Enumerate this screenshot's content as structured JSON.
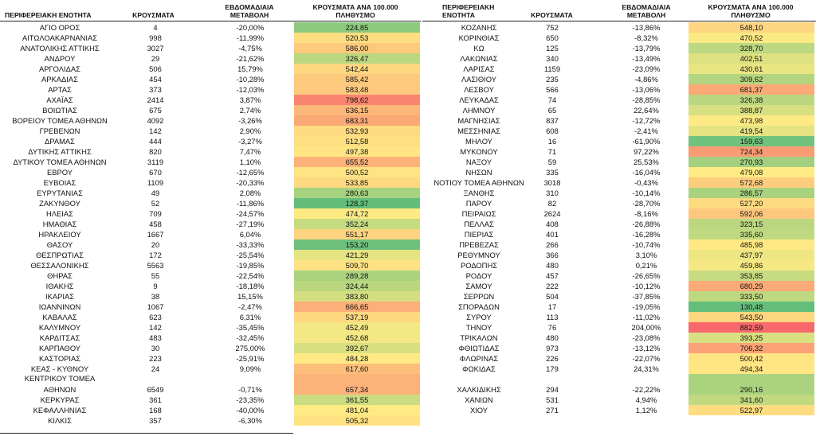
{
  "headers": {
    "region": "ΠΕΡΙΦΕΡΕΙΑΚΗ ΕΝΟΤΗΤΑ",
    "region_line1": "ΠΕΡΙΦΕΡΕΙΑΚΗ",
    "region_line2": "ΕΝΟΤΗΤΑ",
    "cases": "ΚΡΟΥΣΜΑΤΑ",
    "weekly_line1": "ΕΒΔΟΜΑΔΙΑΙΑ",
    "weekly_line2": "ΜΕΤΑΒΟΛΗ",
    "per100k_line1": "ΚΡΟΥΣΜΑΤΑ ΑΝΑ 100.000",
    "per100k_line2": "ΠΛΗΘΥΣΜΟ"
  },
  "colors": {
    "low": "#63be7b",
    "mid": "#ffeb84",
    "high": "#f8696b"
  },
  "left_rows": [
    {
      "name": "ΑΓΙΟ ΟΡΟΣ",
      "cases": "4",
      "change": "-20,00%",
      "rate": "224,85"
    },
    {
      "name": "ΑΙΤΩΛΟΑΚΑΡΝΑΝΙΑΣ",
      "cases": "998",
      "change": "-11,99%",
      "rate": "520,53"
    },
    {
      "name": "ΑΝΑΤΟΛΙΚΗΣ ΑΤΤΙΚΗΣ",
      "cases": "3027",
      "change": "-4,75%",
      "rate": "586,00"
    },
    {
      "name": "ΑΝΔΡΟΥ",
      "cases": "29",
      "change": "-21,62%",
      "rate": "326,47"
    },
    {
      "name": "ΑΡΓΟΛΙΔΑΣ",
      "cases": "506",
      "change": "15,79%",
      "rate": "542,44"
    },
    {
      "name": "ΑΡΚΑΔΙΑΣ",
      "cases": "454",
      "change": "-10,28%",
      "rate": "585,42"
    },
    {
      "name": "ΑΡΤΑΣ",
      "cases": "373",
      "change": "-12,03%",
      "rate": "583,48"
    },
    {
      "name": "ΑΧΑΪΑΣ",
      "cases": "2414",
      "change": "3,87%",
      "rate": "798,62"
    },
    {
      "name": "ΒΟΙΩΤΙΑΣ",
      "cases": "675",
      "change": "2,74%",
      "rate": "636,15"
    },
    {
      "name": "ΒΟΡΕΙΟΥ ΤΟΜΕΑ ΑΘΗΝΩΝ",
      "cases": "4092",
      "change": "-3,26%",
      "rate": "683,31"
    },
    {
      "name": "ΓΡΕΒΕΝΩΝ",
      "cases": "142",
      "change": "2,90%",
      "rate": "532,93"
    },
    {
      "name": "ΔΡΑΜΑΣ",
      "cases": "444",
      "change": "-3,27%",
      "rate": "512,58"
    },
    {
      "name": "ΔΥΤΙΚΗΣ ΑΤΤΙΚΗΣ",
      "cases": "820",
      "change": "7,47%",
      "rate": "497,38"
    },
    {
      "name": "ΔΥΤΙΚΟΥ ΤΟΜΕΑ ΑΘΗΝΩΝ",
      "cases": "3119",
      "change": "1,10%",
      "rate": "655,52"
    },
    {
      "name": "ΕΒΡΟΥ",
      "cases": "670",
      "change": "-12,65%",
      "rate": "500,52"
    },
    {
      "name": "ΕΥΒΟΙΑΣ",
      "cases": "1109",
      "change": "-20,33%",
      "rate": "533,85"
    },
    {
      "name": "ΕΥΡΥΤΑΝΙΑΣ",
      "cases": "49",
      "change": "2,08%",
      "rate": "280,63"
    },
    {
      "name": "ΖΑΚΥΝΘΟΥ",
      "cases": "52",
      "change": "-11,86%",
      "rate": "128,37"
    },
    {
      "name": "ΗΛΕΙΑΣ",
      "cases": "709",
      "change": "-24,57%",
      "rate": "474,72"
    },
    {
      "name": "ΗΜΑΘΙΑΣ",
      "cases": "458",
      "change": "-27,19%",
      "rate": "352,24"
    },
    {
      "name": "ΗΡΑΚΛΕΙΟΥ",
      "cases": "1667",
      "change": "6,04%",
      "rate": "551,17"
    },
    {
      "name": "ΘΑΣΟΥ",
      "cases": "20",
      "change": "-33,33%",
      "rate": "153,20"
    },
    {
      "name": "ΘΕΣΠΡΩΤΙΑΣ",
      "cases": "172",
      "change": "-25,54%",
      "rate": "421,29"
    },
    {
      "name": "ΘΕΣΣΑΛΟΝΙΚΗΣ",
      "cases": "5563",
      "change": "-19,85%",
      "rate": "509,70"
    },
    {
      "name": "ΘΗΡΑΣ",
      "cases": "55",
      "change": "-22,54%",
      "rate": "289,28"
    },
    {
      "name": "ΙΘΑΚΗΣ",
      "cases": "9",
      "change": "-18,18%",
      "rate": "324,44"
    },
    {
      "name": "ΙΚΑΡΙΑΣ",
      "cases": "38",
      "change": "15,15%",
      "rate": "383,80"
    },
    {
      "name": "ΙΩΑΝΝΙΝΩΝ",
      "cases": "1067",
      "change": "-2,47%",
      "rate": "666,65"
    },
    {
      "name": "ΚΑΒΑΛΑΣ",
      "cases": "623",
      "change": "6,31%",
      "rate": "537,19"
    },
    {
      "name": "ΚΑΛΥΜΝΟΥ",
      "cases": "142",
      "change": "-35,45%",
      "rate": "452,49"
    },
    {
      "name": "ΚΑΡΔΙΤΣΑΣ",
      "cases": "483",
      "change": "-32,45%",
      "rate": "452,68"
    },
    {
      "name": "ΚΑΡΠΑΘΟΥ",
      "cases": "30",
      "change": "275,00%",
      "rate": "392,67"
    },
    {
      "name": "ΚΑΣΤΟΡΙΑΣ",
      "cases": "223",
      "change": "-25,91%",
      "rate": "484,28"
    },
    {
      "name": "ΚΕΑΣ - ΚΥΘΝΟΥ",
      "cases": "24",
      "change": "9,09%",
      "rate": "617,60"
    },
    {
      "name": "ΚΕΝΤΡΙΚΟΥ ΤΟΜΕΑ ΑΘΗΝΩΝ",
      "name_line1": "ΚΕΝΤΡΙΚΟΥ ΤΟΜΕΑ",
      "name_line2": "ΑΘΗΝΩΝ",
      "cases": "6549",
      "change": "-0,71%",
      "rate": "657,34"
    },
    {
      "name": "ΚΕΡΚΥΡΑΣ",
      "cases": "361",
      "change": "-23,35%",
      "rate": "361,55"
    },
    {
      "name": "ΚΕΦΑΛΛΗΝΙΑΣ",
      "cases": "168",
      "change": "-40,00%",
      "rate": "481,04"
    },
    {
      "name": "ΚΙΛΚΙΣ",
      "cases": "357",
      "change": "-6,30%",
      "rate": "505,32"
    }
  ],
  "right_rows": [
    {
      "name": "ΚΟΖΑΝΗΣ",
      "cases": "752",
      "change": "-13,86%",
      "rate": "548,10"
    },
    {
      "name": "ΚΟΡΙΝΘΙΑΣ",
      "cases": "650",
      "change": "-8,32%",
      "rate": "470,52"
    },
    {
      "name": "ΚΩ",
      "cases": "125",
      "change": "-13,79%",
      "rate": "328,70"
    },
    {
      "name": "ΛΑΚΩΝΙΑΣ",
      "cases": "340",
      "change": "-13,49%",
      "rate": "402,51"
    },
    {
      "name": "ΛΑΡΙΣΑΣ",
      "cases": "1159",
      "change": "-23,09%",
      "rate": "430,61"
    },
    {
      "name": "ΛΑΣΙΘΙΟΥ",
      "cases": "235",
      "change": "-4,86%",
      "rate": "309,62"
    },
    {
      "name": "ΛΕΣΒΟΥ",
      "cases": "566",
      "change": "-13,06%",
      "rate": "681,37"
    },
    {
      "name": "ΛΕΥΚΑΔΑΣ",
      "cases": "74",
      "change": "-28,85%",
      "rate": "326,38"
    },
    {
      "name": "ΛΗΜΝΟΥ",
      "cases": "65",
      "change": "22,64%",
      "rate": "388,87"
    },
    {
      "name": "ΜΑΓΝΗΣΙΑΣ",
      "cases": "837",
      "change": "-12,72%",
      "rate": "473,98"
    },
    {
      "name": "ΜΕΣΣΗΝΙΑΣ",
      "cases": "608",
      "change": "-2,41%",
      "rate": "419,54"
    },
    {
      "name": "ΜΗΛΟΥ",
      "cases": "16",
      "change": "-61,90%",
      "rate": "159,63"
    },
    {
      "name": "ΜΥΚΟΝΟΥ",
      "cases": "71",
      "change": "97,22%",
      "rate": "724,34"
    },
    {
      "name": "ΝΑΞΟΥ",
      "cases": "59",
      "change": "25,53%",
      "rate": "270,93"
    },
    {
      "name": "ΝΗΣΩΝ",
      "cases": "335",
      "change": "-16,04%",
      "rate": "479,08"
    },
    {
      "name": "ΝΟΤΙΟΥ ΤΟΜΕΑ ΑΘΗΝΩΝ",
      "cases": "3018",
      "change": "-0,43%",
      "rate": "572,68"
    },
    {
      "name": "ΞΑΝΘΗΣ",
      "cases": "310",
      "change": "-10,14%",
      "rate": "286,57"
    },
    {
      "name": "ΠΑΡΟΥ",
      "cases": "82",
      "change": "-28,70%",
      "rate": "527,20"
    },
    {
      "name": "ΠΕΙΡΑΙΩΣ",
      "cases": "2624",
      "change": "-8,16%",
      "rate": "592,06"
    },
    {
      "name": "ΠΕΛΛΑΣ",
      "cases": "408",
      "change": "-26,88%",
      "rate": "323,15"
    },
    {
      "name": "ΠΙΕΡΙΑΣ",
      "cases": "401",
      "change": "-16,28%",
      "rate": "335,60"
    },
    {
      "name": "ΠΡΕΒΕΖΑΣ",
      "cases": "266",
      "change": "-10,74%",
      "rate": "485,98"
    },
    {
      "name": "ΡΕΘΥΜΝΟΥ",
      "cases": "366",
      "change": "3,10%",
      "rate": "437,97"
    },
    {
      "name": "ΡΟΔΟΠΗΣ",
      "cases": "480",
      "change": "0,21%",
      "rate": "459,86"
    },
    {
      "name": "ΡΟΔΟΥ",
      "cases": "457",
      "change": "-26,65%",
      "rate": "353,85"
    },
    {
      "name": "ΣΑΜΟΥ",
      "cases": "222",
      "change": "-10,12%",
      "rate": "680,29"
    },
    {
      "name": "ΣΕΡΡΩΝ",
      "cases": "504",
      "change": "-37,85%",
      "rate": "333,50"
    },
    {
      "name": "ΣΠΟΡΑΔΩΝ",
      "cases": "17",
      "change": "-19,05%",
      "rate": "130,48"
    },
    {
      "name": "ΣΥΡΟΥ",
      "cases": "113",
      "change": "-11,02%",
      "rate": "543,50"
    },
    {
      "name": "ΤΗΝΟΥ",
      "cases": "76",
      "change": "204,00%",
      "rate": "882,59"
    },
    {
      "name": "ΤΡΙΚΑΛΩΝ",
      "cases": "480",
      "change": "-23,08%",
      "rate": "393,25"
    },
    {
      "name": "ΦΘΙΩΤΙΔΑΣ",
      "cases": "973",
      "change": "-13,12%",
      "rate": "706,32"
    },
    {
      "name": "ΦΛΩΡΙΝΑΣ",
      "cases": "226",
      "change": "-22,07%",
      "rate": "500,42"
    },
    {
      "name": "ΦΩΚΙΔΑΣ",
      "cases": "179",
      "change": "24,31%",
      "rate": "494,34"
    },
    {
      "name": "ΧΑΛΚΙΔΙΚΗΣ",
      "cases": "294",
      "change": "-22,22%",
      "rate": "290,16",
      "tall": true
    },
    {
      "name": "ΧΑΝΙΩΝ",
      "cases": "531",
      "change": "4,94%",
      "rate": "341,60"
    },
    {
      "name": "ΧΙΟΥ",
      "cases": "271",
      "change": "1,12%",
      "rate": "522,97"
    }
  ]
}
